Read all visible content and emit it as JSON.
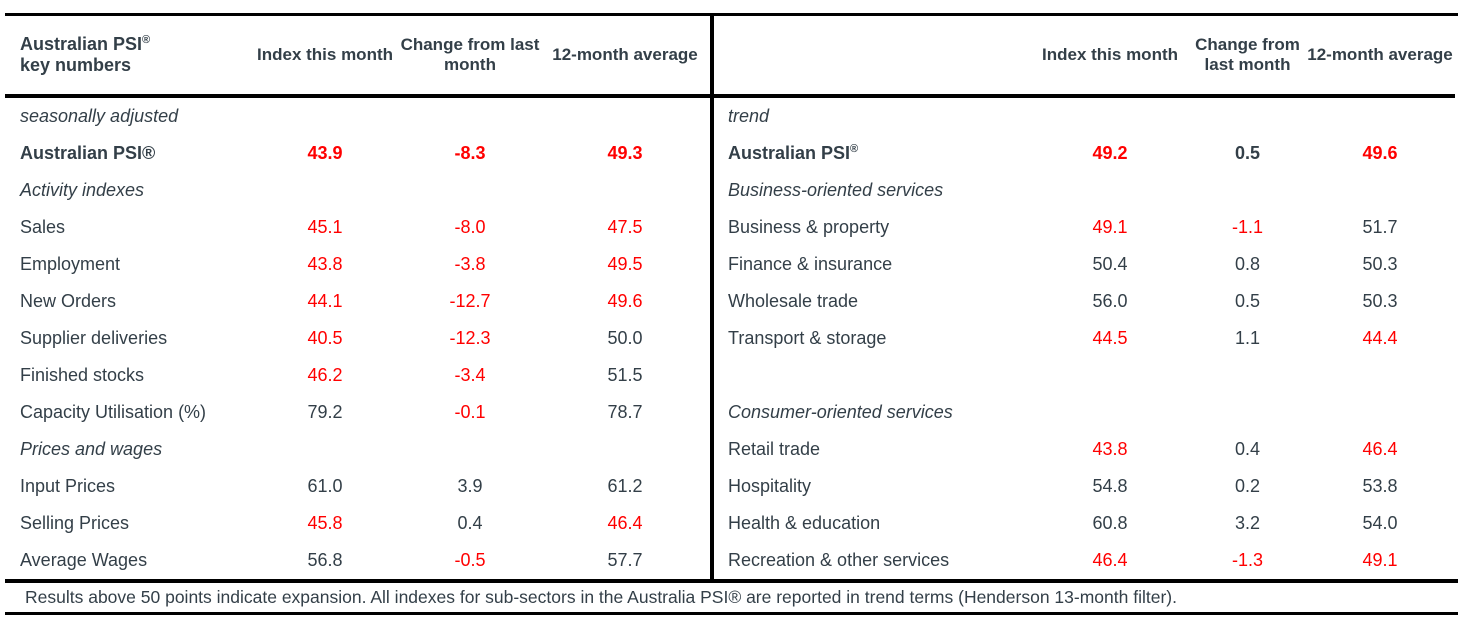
{
  "colors": {
    "text_dark": "#333F48",
    "contraction_red": "#FF0000",
    "rule_black": "#000000",
    "background": "#FFFFFF"
  },
  "left_table": {
    "header": {
      "title_main": "Australian PSI",
      "title_sup": "®",
      "title_line2": "key numbers",
      "columns": [
        "Index this month",
        "Change from last month",
        "12-month average"
      ]
    },
    "rows": [
      {
        "type": "section",
        "label": "seasonally adjusted"
      },
      {
        "type": "total",
        "label": "Australian PSI®",
        "values": [
          {
            "text": "43.9",
            "red": true
          },
          {
            "text": "-8.3",
            "red": true
          },
          {
            "text": "49.3",
            "red": true
          }
        ]
      },
      {
        "type": "section",
        "label": "Activity indexes"
      },
      {
        "type": "data",
        "label": "Sales",
        "values": [
          {
            "text": "45.1",
            "red": true
          },
          {
            "text": "-8.0",
            "red": true
          },
          {
            "text": "47.5",
            "red": true
          }
        ]
      },
      {
        "type": "data",
        "label": "Employment",
        "values": [
          {
            "text": "43.8",
            "red": true
          },
          {
            "text": "-3.8",
            "red": true
          },
          {
            "text": "49.5",
            "red": true
          }
        ]
      },
      {
        "type": "data",
        "label": "New Orders",
        "values": [
          {
            "text": "44.1",
            "red": true
          },
          {
            "text": "-12.7",
            "red": true
          },
          {
            "text": "49.6",
            "red": true
          }
        ]
      },
      {
        "type": "data",
        "label": "Supplier deliveries",
        "values": [
          {
            "text": "40.5",
            "red": true
          },
          {
            "text": "-12.3",
            "red": true
          },
          {
            "text": "50.0",
            "red": false
          }
        ]
      },
      {
        "type": "data",
        "label": "Finished stocks",
        "values": [
          {
            "text": "46.2",
            "red": true
          },
          {
            "text": "-3.4",
            "red": true
          },
          {
            "text": "51.5",
            "red": false
          }
        ]
      },
      {
        "type": "data",
        "label": "Capacity Utilisation (%)",
        "values": [
          {
            "text": "79.2",
            "red": false
          },
          {
            "text": "-0.1",
            "red": true
          },
          {
            "text": "78.7",
            "red": false
          }
        ]
      },
      {
        "type": "section",
        "label": "Prices and wages"
      },
      {
        "type": "data",
        "label": "Input Prices",
        "values": [
          {
            "text": "61.0",
            "red": false
          },
          {
            "text": "3.9",
            "red": false
          },
          {
            "text": "61.2",
            "red": false
          }
        ]
      },
      {
        "type": "data",
        "label": "Selling Prices",
        "values": [
          {
            "text": "45.8",
            "red": true
          },
          {
            "text": "0.4",
            "red": false
          },
          {
            "text": "46.4",
            "red": true
          }
        ]
      },
      {
        "type": "data",
        "label": "Average Wages",
        "values": [
          {
            "text": "56.8",
            "red": false
          },
          {
            "text": "-0.5",
            "red": true
          },
          {
            "text": "57.7",
            "red": false
          }
        ]
      }
    ]
  },
  "right_table": {
    "header": {
      "title_main": "",
      "columns": [
        "Index this month",
        "Change from last month",
        "12-month average"
      ]
    },
    "rows": [
      {
        "type": "section",
        "label": "trend"
      },
      {
        "type": "total",
        "label": "Australian PSI",
        "label_sup": "®",
        "values": [
          {
            "text": "49.2",
            "red": true
          },
          {
            "text": "0.5",
            "red": false
          },
          {
            "text": "49.6",
            "red": true
          }
        ]
      },
      {
        "type": "section",
        "label": "Business-oriented services"
      },
      {
        "type": "data",
        "label": "Business & property",
        "values": [
          {
            "text": "49.1",
            "red": true
          },
          {
            "text": "-1.1",
            "red": true
          },
          {
            "text": "51.7",
            "red": false
          }
        ]
      },
      {
        "type": "data",
        "label": "Finance & insurance",
        "values": [
          {
            "text": "50.4",
            "red": false
          },
          {
            "text": "0.8",
            "red": false
          },
          {
            "text": "50.3",
            "red": false
          }
        ]
      },
      {
        "type": "data",
        "label": "Wholesale trade",
        "values": [
          {
            "text": "56.0",
            "red": false
          },
          {
            "text": "0.5",
            "red": false
          },
          {
            "text": "50.3",
            "red": false
          }
        ]
      },
      {
        "type": "data",
        "label": "Transport & storage",
        "values": [
          {
            "text": "44.5",
            "red": true
          },
          {
            "text": "1.1",
            "red": false
          },
          {
            "text": "44.4",
            "red": true
          }
        ]
      },
      {
        "type": "spacer",
        "label": ""
      },
      {
        "type": "section",
        "label": "Consumer-oriented services"
      },
      {
        "type": "data",
        "label": "Retail trade",
        "values": [
          {
            "text": "43.8",
            "red": true
          },
          {
            "text": "0.4",
            "red": false
          },
          {
            "text": "46.4",
            "red": true
          }
        ]
      },
      {
        "type": "data",
        "label": "Hospitality",
        "values": [
          {
            "text": "54.8",
            "red": false
          },
          {
            "text": "0.2",
            "red": false
          },
          {
            "text": "53.8",
            "red": false
          }
        ]
      },
      {
        "type": "data",
        "label": "Health & education",
        "values": [
          {
            "text": "60.8",
            "red": false
          },
          {
            "text": "3.2",
            "red": false
          },
          {
            "text": "54.0",
            "red": false
          }
        ]
      },
      {
        "type": "data",
        "label": "Recreation & other services",
        "values": [
          {
            "text": "46.4",
            "red": true
          },
          {
            "text": "-1.3",
            "red": true
          },
          {
            "text": "49.1",
            "red": true
          }
        ]
      }
    ]
  },
  "footer": {
    "text": "Results above 50 points indicate expansion. All indexes for sub-sectors in the Australia PSI® are reported in trend terms (Henderson 13-month filter)."
  }
}
